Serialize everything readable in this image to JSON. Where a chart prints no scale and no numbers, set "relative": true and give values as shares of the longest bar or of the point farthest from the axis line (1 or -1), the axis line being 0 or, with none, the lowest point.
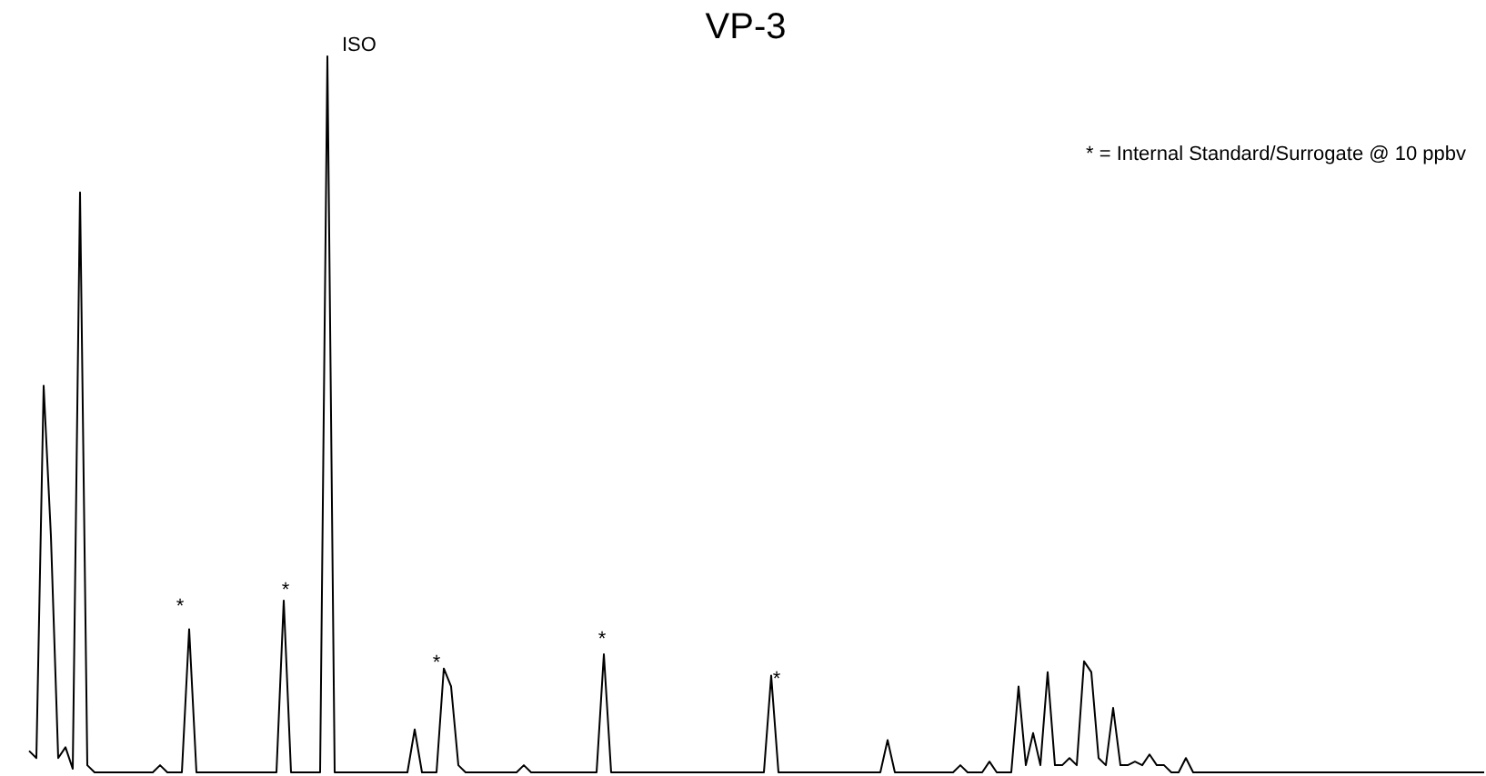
{
  "chart_data": {
    "type": "line",
    "title": "VP-3",
    "relative": true,
    "color": "#000000",
    "marker": "none",
    "line_style": "solid",
    "annotations": [
      "ISO",
      "*",
      "*",
      "*",
      "*",
      "*",
      "* = Internal Standard/Surrogate @ 10 ppbv"
    ],
    "categories": [
      null,
      null,
      null,
      null,
      null,
      null,
      null,
      null,
      null,
      null,
      null,
      null,
      null,
      null,
      null,
      null,
      null,
      null,
      null,
      null,
      null,
      null,
      null,
      null,
      null,
      null,
      null,
      null,
      null,
      null,
      null,
      null,
      null,
      null,
      null,
      null,
      null,
      null,
      null,
      null,
      null,
      null,
      null,
      null,
      null,
      null,
      null,
      null,
      null,
      null,
      null,
      null,
      null,
      null,
      null,
      null,
      null,
      null,
      null,
      null,
      null,
      null,
      null,
      null,
      null,
      null,
      null,
      null,
      null,
      null,
      null,
      null,
      null,
      null,
      null,
      null,
      null,
      null,
      null,
      null,
      null,
      null,
      null,
      null,
      null,
      null,
      null,
      null,
      null,
      null,
      null,
      null,
      null,
      null,
      null,
      null,
      null,
      null,
      null,
      null,
      null,
      null,
      null,
      null,
      null,
      null,
      null,
      null,
      null,
      null,
      null,
      null,
      null,
      null,
      null,
      null,
      null,
      null,
      null,
      null,
      null,
      null,
      null,
      null,
      null,
      null,
      null,
      null,
      null,
      null,
      null,
      null,
      null,
      null,
      null,
      null,
      null,
      null,
      null,
      null,
      null,
      null,
      null,
      null,
      null,
      null,
      null,
      null,
      null,
      null,
      null,
      null,
      null,
      null,
      null,
      null,
      null,
      null,
      null,
      null,
      null,
      null,
      null,
      null,
      null,
      null,
      null,
      null,
      null,
      null,
      null,
      null,
      null,
      null,
      null,
      null,
      null,
      null,
      null,
      null,
      null,
      null,
      null,
      null,
      null,
      null,
      null,
      null,
      null,
      null,
      null,
      null,
      null,
      null,
      null,
      null,
      null,
      null,
      null,
      null,
      null
    ],
    "values": [
      0.03,
      0.02,
      0.54,
      0.33,
      0.02,
      0.035,
      0.005,
      0.81,
      0.01,
      0,
      0,
      0,
      0,
      0,
      0,
      0,
      0,
      0,
      0.01,
      0,
      0,
      0,
      0.2,
      0,
      0,
      0,
      0,
      0,
      0,
      0,
      0,
      0,
      0,
      0,
      0,
      0.24,
      0,
      0,
      0,
      0,
      0,
      1,
      0,
      0,
      0,
      0,
      0,
      0,
      0,
      0,
      0,
      0,
      0,
      0.06,
      0,
      0,
      0,
      0.145,
      0.12,
      0.01,
      0,
      0,
      0,
      0,
      0,
      0,
      0,
      0,
      0.01,
      0,
      0,
      0,
      0,
      0,
      0,
      0,
      0,
      0,
      0,
      0.165,
      0,
      0,
      0,
      0,
      0,
      0,
      0,
      0,
      0,
      0,
      0,
      0,
      0,
      0,
      0,
      0,
      0,
      0,
      0,
      0,
      0,
      0,
      0.135,
      0,
      0,
      0,
      0,
      0,
      0,
      0,
      0,
      0,
      0,
      0,
      0,
      0,
      0,
      0,
      0.045,
      0,
      0,
      0,
      0,
      0,
      0,
      0,
      0,
      0,
      0.01,
      0,
      0,
      0,
      0.015,
      0,
      0,
      0,
      0.12,
      0.01,
      0.055,
      0.01,
      0.14,
      0.01,
      0.01,
      0.02,
      0.01,
      0.155,
      0.14,
      0.02,
      0.01,
      0.09,
      0.01,
      0.01,
      0.015,
      0.01,
      0.025,
      0.01,
      0.01,
      0,
      0,
      0.02,
      0,
      0,
      0,
      0,
      0,
      0,
      0,
      0,
      0,
      0,
      0,
      0,
      0,
      0,
      0,
      0,
      0,
      0,
      0,
      0,
      0,
      0,
      0,
      0,
      0,
      0,
      0,
      0,
      0,
      0,
      0,
      0,
      0,
      0,
      0,
      0,
      0,
      0,
      0,
      0,
      0
    ]
  }
}
